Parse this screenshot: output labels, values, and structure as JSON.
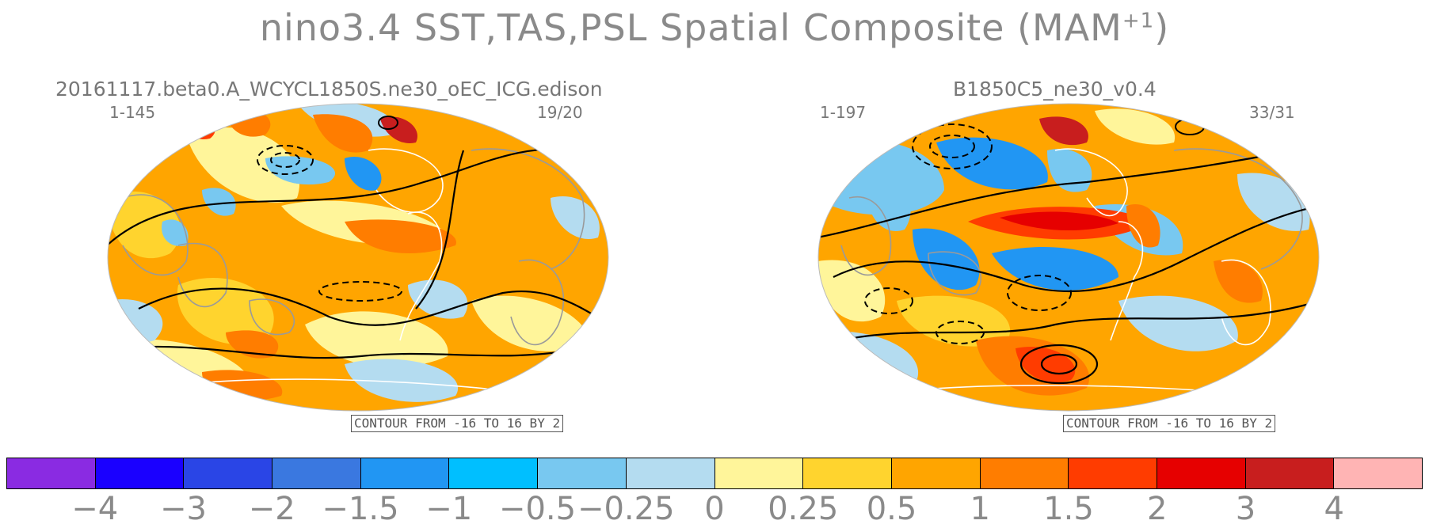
{
  "title": {
    "main": "nino3.4 SST,TAS,PSL Spatial Composite (MAM",
    "superscript": "+1",
    "close": ")"
  },
  "panels": [
    {
      "name": "20161117.beta0.A_WCYCL1850S.ne30_oEC_ICG.edison",
      "years": "1-145",
      "count": "19/20",
      "contour_label": "CONTOUR FROM -16 TO 16 BY 2"
    },
    {
      "name": "B1850C5_ne30_v0.4",
      "years": "1-197",
      "count": "33/31",
      "contour_label": "CONTOUR FROM -16 TO 16 BY 2"
    }
  ],
  "colorbar": {
    "colors": [
      "#8a2be2",
      "#1a00ff",
      "#2a45e6",
      "#3a78e0",
      "#2196f3",
      "#00bfff",
      "#78c8f0",
      "#b4dcf0",
      "#fff59a",
      "#ffd42e",
      "#ffa500",
      "#ff7d00",
      "#ff3c00",
      "#e60000",
      "#c81e1e",
      "#ffb4b4"
    ],
    "labels": [
      "−4",
      "−3",
      "−2",
      "−1.5",
      "−1",
      "−0.5",
      "−0.25",
      "0",
      "0.25",
      "0.5",
      "1",
      "1.5",
      "2",
      "3",
      "4"
    ]
  },
  "colors": {
    "land_outline": "#9a9a9a",
    "contour": "#000000",
    "text": "#8a8a8a"
  }
}
